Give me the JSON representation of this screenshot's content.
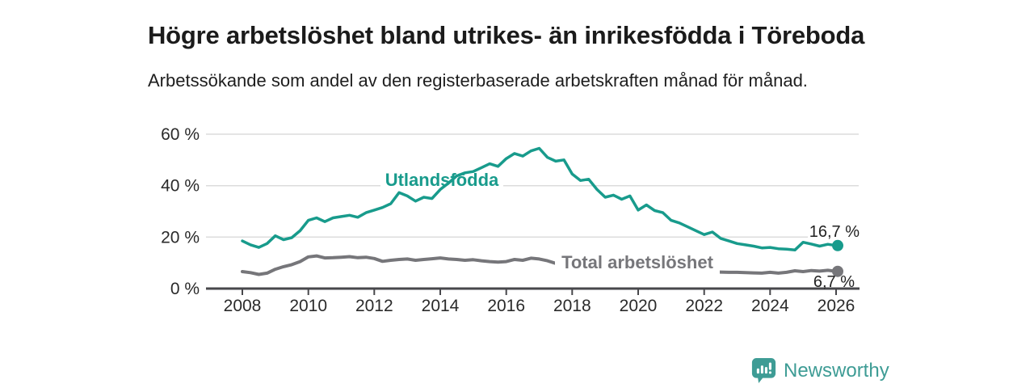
{
  "header": {
    "title": "Högre arbetslöshet bland utrikes- än inrikesfödda i Töreboda",
    "subtitle": "Arbetssökande som andel av den registerbaserade arbetskraften månad för månad."
  },
  "footer": {
    "brand": "Newsworthy",
    "logo_icon": "newsworthy-speech-bubble-bar-chart-icon"
  },
  "colors": {
    "teal": "#189b8c",
    "gray": "#76767a",
    "grid": "#dcdcdc",
    "axis": "#47474b",
    "text": "#2a2a2a",
    "logo": "#3e9c95"
  },
  "chart_data": {
    "type": "line",
    "title": "Högre arbetslöshet bland utrikes- än inrikesfödda i Töreboda",
    "xlabel": "",
    "ylabel": "Arbetssökande som andel av den registerbaserade arbetskraften",
    "x_range": [
      2007.9,
      2026.7
    ],
    "y_range": [
      0,
      60
    ],
    "grid": true,
    "legend_position": "inline-labels",
    "x_ticks": [
      2008,
      2010,
      2012,
      2014,
      2016,
      2018,
      2020,
      2022,
      2024,
      2026
    ],
    "y_ticks": [
      {
        "value": 0,
        "label": "0 %"
      },
      {
        "value": 20,
        "label": "20 %"
      },
      {
        "value": 40,
        "label": "40 %"
      },
      {
        "value": 60,
        "label": "60 %"
      }
    ],
    "series": [
      {
        "name": "Utlandsfödda",
        "label": "Utlandsfödda",
        "color": "#189b8c",
        "end_label": "16,7 %",
        "end_value": 16.7,
        "points": [
          [
            2008.0,
            18.5
          ],
          [
            2008.25,
            17.0
          ],
          [
            2008.5,
            16.0
          ],
          [
            2008.75,
            17.5
          ],
          [
            2009.0,
            20.5
          ],
          [
            2009.25,
            19.0
          ],
          [
            2009.5,
            19.8
          ],
          [
            2009.75,
            22.5
          ],
          [
            2010.0,
            26.5
          ],
          [
            2010.25,
            27.5
          ],
          [
            2010.5,
            26.0
          ],
          [
            2010.75,
            27.5
          ],
          [
            2011.0,
            28.0
          ],
          [
            2011.25,
            28.5
          ],
          [
            2011.5,
            27.7
          ],
          [
            2011.75,
            29.5
          ],
          [
            2012.0,
            30.5
          ],
          [
            2012.25,
            31.5
          ],
          [
            2012.5,
            33.0
          ],
          [
            2012.75,
            37.3
          ],
          [
            2013.0,
            36.0
          ],
          [
            2013.25,
            34.0
          ],
          [
            2013.5,
            35.5
          ],
          [
            2013.75,
            35.0
          ],
          [
            2014.0,
            38.5
          ],
          [
            2014.25,
            41.0
          ],
          [
            2014.5,
            43.8
          ],
          [
            2014.75,
            45.0
          ],
          [
            2015.0,
            45.5
          ],
          [
            2015.25,
            47.0
          ],
          [
            2015.5,
            48.5
          ],
          [
            2015.75,
            47.5
          ],
          [
            2016.0,
            50.5
          ],
          [
            2016.25,
            52.5
          ],
          [
            2016.5,
            51.5
          ],
          [
            2016.75,
            53.5
          ],
          [
            2017.0,
            54.5
          ],
          [
            2017.25,
            51.0
          ],
          [
            2017.5,
            49.5
          ],
          [
            2017.75,
            50.0
          ],
          [
            2018.0,
            44.5
          ],
          [
            2018.25,
            42.0
          ],
          [
            2018.5,
            42.5
          ],
          [
            2018.75,
            38.5
          ],
          [
            2019.0,
            35.5
          ],
          [
            2019.25,
            36.3
          ],
          [
            2019.5,
            34.7
          ],
          [
            2019.75,
            36.0
          ],
          [
            2020.0,
            30.5
          ],
          [
            2020.25,
            32.5
          ],
          [
            2020.5,
            30.3
          ],
          [
            2020.75,
            29.5
          ],
          [
            2021.0,
            26.5
          ],
          [
            2021.25,
            25.5
          ],
          [
            2021.5,
            24.0
          ],
          [
            2021.75,
            22.5
          ],
          [
            2022.0,
            21.0
          ],
          [
            2022.25,
            22.0
          ],
          [
            2022.5,
            19.5
          ],
          [
            2022.75,
            18.5
          ],
          [
            2023.0,
            17.5
          ],
          [
            2023.25,
            17.0
          ],
          [
            2023.5,
            16.5
          ],
          [
            2023.75,
            15.8
          ],
          [
            2024.0,
            16.0
          ],
          [
            2024.25,
            15.5
          ],
          [
            2024.5,
            15.3
          ],
          [
            2024.75,
            15.0
          ],
          [
            2025.0,
            18.0
          ],
          [
            2025.25,
            17.3
          ],
          [
            2025.5,
            16.5
          ],
          [
            2025.75,
            17.2
          ],
          [
            2026.0,
            16.7
          ]
        ]
      },
      {
        "name": "Total arbetslöshet",
        "label": "Total arbetslöshet",
        "color": "#76767a",
        "end_label": "6,7 %",
        "end_value": 6.7,
        "points": [
          [
            2008.0,
            6.6
          ],
          [
            2008.25,
            6.2
          ],
          [
            2008.5,
            5.5
          ],
          [
            2008.75,
            6.0
          ],
          [
            2009.0,
            7.5
          ],
          [
            2009.25,
            8.5
          ],
          [
            2009.5,
            9.3
          ],
          [
            2009.75,
            10.5
          ],
          [
            2010.0,
            12.3
          ],
          [
            2010.25,
            12.7
          ],
          [
            2010.5,
            11.9
          ],
          [
            2010.75,
            12.0
          ],
          [
            2011.0,
            12.2
          ],
          [
            2011.25,
            12.4
          ],
          [
            2011.5,
            12.0
          ],
          [
            2011.75,
            12.2
          ],
          [
            2012.0,
            11.7
          ],
          [
            2012.25,
            10.6
          ],
          [
            2012.5,
            11.0
          ],
          [
            2012.75,
            11.3
          ],
          [
            2013.0,
            11.5
          ],
          [
            2013.25,
            11.0
          ],
          [
            2013.5,
            11.3
          ],
          [
            2013.75,
            11.6
          ],
          [
            2014.0,
            11.9
          ],
          [
            2014.25,
            11.5
          ],
          [
            2014.5,
            11.3
          ],
          [
            2014.75,
            11.0
          ],
          [
            2015.0,
            11.2
          ],
          [
            2015.25,
            10.8
          ],
          [
            2015.5,
            10.5
          ],
          [
            2015.75,
            10.3
          ],
          [
            2016.0,
            10.5
          ],
          [
            2016.25,
            11.3
          ],
          [
            2016.5,
            11.0
          ],
          [
            2016.75,
            11.8
          ],
          [
            2017.0,
            11.5
          ],
          [
            2017.25,
            10.8
          ],
          [
            2017.5,
            9.8
          ],
          [
            2017.75,
            9.2
          ],
          [
            2018.0,
            9.0
          ],
          [
            2018.25,
            8.8
          ],
          [
            2018.5,
            8.5
          ],
          [
            2018.75,
            8.3
          ],
          [
            2019.0,
            8.0
          ],
          [
            2019.25,
            8.0
          ],
          [
            2019.5,
            8.2
          ],
          [
            2019.75,
            8.5
          ],
          [
            2020.0,
            9.0
          ],
          [
            2020.25,
            9.3
          ],
          [
            2020.5,
            9.0
          ],
          [
            2020.75,
            8.5
          ],
          [
            2021.0,
            8.0
          ],
          [
            2021.25,
            7.7
          ],
          [
            2021.5,
            7.3
          ],
          [
            2021.75,
            7.0
          ],
          [
            2022.0,
            6.8
          ],
          [
            2022.25,
            6.5
          ],
          [
            2022.5,
            6.4
          ],
          [
            2022.75,
            6.3
          ],
          [
            2023.0,
            6.3
          ],
          [
            2023.25,
            6.2
          ],
          [
            2023.5,
            6.1
          ],
          [
            2023.75,
            6.0
          ],
          [
            2024.0,
            6.3
          ],
          [
            2024.25,
            6.0
          ],
          [
            2024.5,
            6.3
          ],
          [
            2024.75,
            6.9
          ],
          [
            2025.0,
            6.6
          ],
          [
            2025.25,
            7.0
          ],
          [
            2025.5,
            6.8
          ],
          [
            2025.75,
            7.1
          ],
          [
            2026.0,
            6.7
          ]
        ]
      }
    ]
  }
}
